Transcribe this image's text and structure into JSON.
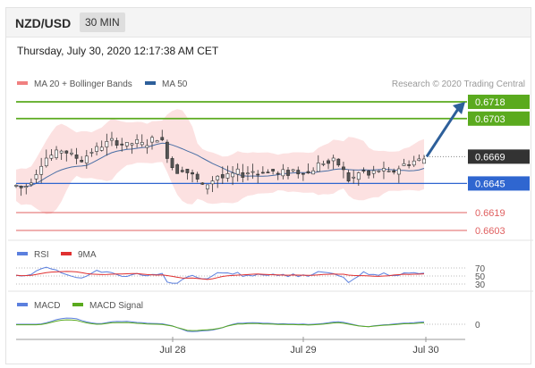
{
  "header": {
    "pair": "NZD/USD",
    "timeframe": "30 MIN"
  },
  "timestamp": "Thursday, July 30, 2020 12:17:38 AM CET",
  "legend": {
    "ma20_label": "MA 20 + Bollinger Bands",
    "ma50_label": "MA 50",
    "credit": "Research © 2020 Trading Central",
    "ma20_color": "#f08080",
    "ma50_color": "#4a6fa5"
  },
  "chart_data": [
    {
      "type": "candlestick",
      "title": "NZD/USD",
      "ylim": [
        0.6598,
        0.6722
      ],
      "x_ticks": [
        "Jul 28",
        "Jul 29",
        "Jul 30"
      ],
      "levels": [
        {
          "value": 0.6718,
          "label": "0.6718",
          "kind": "resistance",
          "color": "#5aaa1e"
        },
        {
          "value": 0.6703,
          "label": "0.6703",
          "kind": "resistance",
          "color": "#5aaa1e"
        },
        {
          "value": 0.6669,
          "label": "0.6669",
          "kind": "current",
          "color": "#333333"
        },
        {
          "value": 0.6645,
          "label": "0.6645",
          "kind": "pivot",
          "color": "#2f66d0"
        },
        {
          "value": 0.6619,
          "label": "0.6619",
          "kind": "support",
          "color": "#e06060"
        },
        {
          "value": 0.6603,
          "label": "0.6603",
          "kind": "support",
          "color": "#e06060"
        }
      ],
      "forecast_arrow": {
        "from": 0.6669,
        "to": 0.6718,
        "color": "#2d5f9a"
      },
      "price_path": [
        0.6643,
        0.6641,
        0.6643,
        0.6648,
        0.6655,
        0.6663,
        0.6668,
        0.667,
        0.6672,
        0.6675,
        0.6673,
        0.667,
        0.6668,
        0.6666,
        0.667,
        0.6674,
        0.6676,
        0.6679,
        0.6681,
        0.6683,
        0.6682,
        0.668,
        0.6679,
        0.6681,
        0.6682,
        0.668,
        0.6681,
        0.6684,
        0.6686,
        0.6682,
        0.667,
        0.666,
        0.6656,
        0.6658,
        0.6655,
        0.6652,
        0.6648,
        0.6642,
        0.6645,
        0.6648,
        0.6652,
        0.665,
        0.6651,
        0.6653,
        0.6655,
        0.6653,
        0.6655,
        0.6656,
        0.6654,
        0.6657,
        0.6655,
        0.6656,
        0.6653,
        0.6655,
        0.6654,
        0.6657,
        0.6655,
        0.6656,
        0.6654,
        0.6658,
        0.6662,
        0.6664,
        0.6663,
        0.6665,
        0.6662,
        0.6656,
        0.6648,
        0.665,
        0.6654,
        0.6656,
        0.6652,
        0.6655,
        0.6657,
        0.6656,
        0.6654,
        0.6656,
        0.6659,
        0.6662,
        0.6663,
        0.6665,
        0.6666,
        0.6667
      ],
      "rsi": {
        "legend": [
          "RSI",
          "9MA"
        ],
        "levels": [
          70,
          50,
          30
        ],
        "colors": [
          "#5b7fde",
          "#e03030"
        ]
      },
      "macd": {
        "legend": [
          "MACD",
          "MACD Signal"
        ],
        "levels": [
          0
        ],
        "colors": [
          "#5b7fde",
          "#5aaa1e"
        ]
      }
    }
  ]
}
